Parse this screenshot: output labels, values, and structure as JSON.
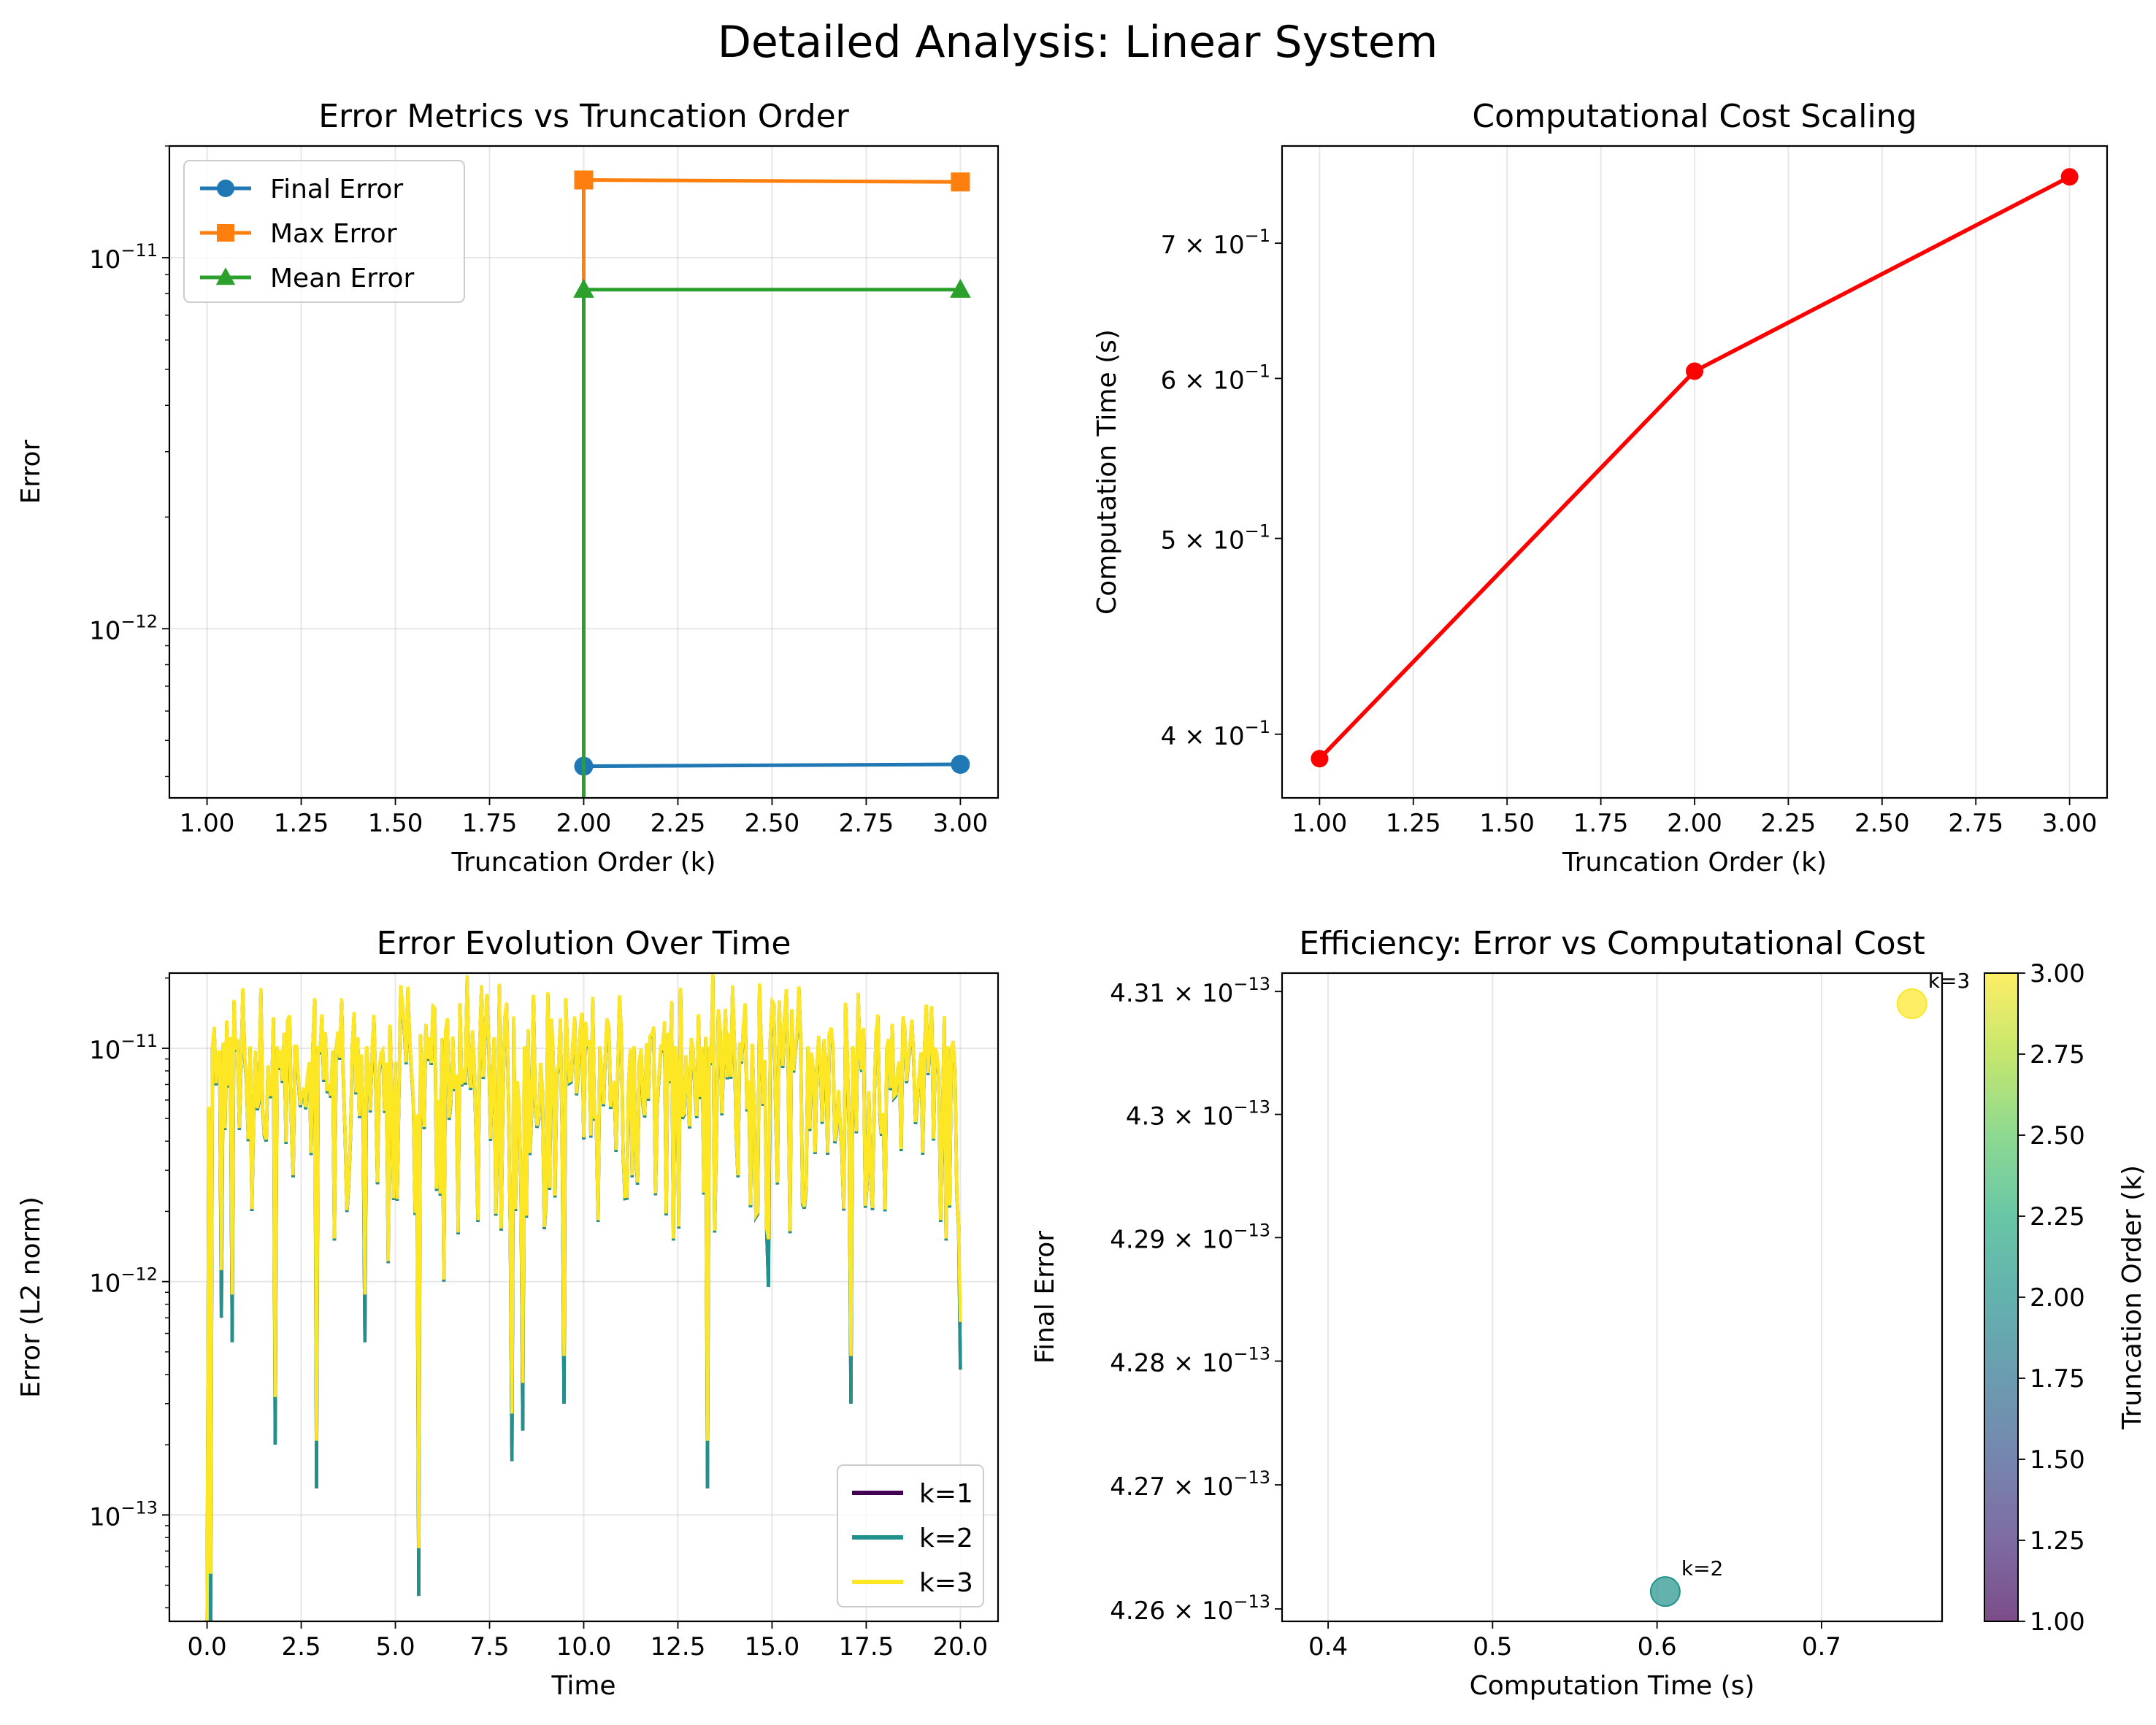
{
  "suptitle": "Detailed Analysis: Linear System",
  "chart_data": [
    {
      "type": "line",
      "title": "Error Metrics vs Truncation Order",
      "xlabel": "Truncation Order (k)",
      "ylabel": "Error",
      "yscale": "log",
      "xlim": [
        0.9,
        3.1
      ],
      "ylim": [
        3.5e-13,
        2e-11
      ],
      "grid": true,
      "legend": "top-left",
      "x_ticks": [
        1.0,
        1.25,
        1.5,
        1.75,
        2.0,
        2.25,
        2.5,
        2.75,
        3.0
      ],
      "x_tick_labels": [
        "1.00",
        "1.25",
        "1.50",
        "1.75",
        "2.00",
        "2.25",
        "2.50",
        "2.75",
        "3.00"
      ],
      "y_major_ticks": [
        1e-12,
        1e-11
      ],
      "y_tick_labels": [
        "10",
        "10"
      ],
      "y_tick_exponents": [
        "−12",
        "−11"
      ],
      "x": [
        1,
        2,
        3
      ],
      "series": [
        {
          "name": "Final Error",
          "values": [
            0.0,
            4.26e-13,
            4.31e-13
          ],
          "color": "#1f77b4",
          "marker": "circle"
        },
        {
          "name": "Max Error",
          "values": [
            0.0,
            1.62e-11,
            1.6e-11
          ],
          "color": "#ff7f0e",
          "marker": "square"
        },
        {
          "name": "Mean Error",
          "values": [
            0.0,
            8.2e-12,
            8.2e-12
          ],
          "color": "#2ca02c",
          "marker": "triangle"
        }
      ]
    },
    {
      "type": "line",
      "title": "Computational Cost Scaling",
      "xlabel": "Truncation Order (k)",
      "ylabel": "Computation Time (s)",
      "yscale": "log",
      "xlim": [
        0.9,
        3.1
      ],
      "ylim": [
        0.372,
        0.782
      ],
      "grid": "x-only",
      "x_ticks": [
        1.0,
        1.25,
        1.5,
        1.75,
        2.0,
        2.25,
        2.5,
        2.75,
        3.0
      ],
      "x_tick_labels": [
        "1.00",
        "1.25",
        "1.50",
        "1.75",
        "2.00",
        "2.25",
        "2.50",
        "2.75",
        "3.00"
      ],
      "y_ticks": [
        0.4,
        0.5,
        0.6,
        0.7
      ],
      "y_tick_labels": [
        "4 × 10",
        "5 × 10",
        "6 × 10",
        "7 × 10"
      ],
      "y_tick_exponents": [
        "−1",
        "−1",
        "−1",
        "−1"
      ],
      "x": [
        1,
        2,
        3
      ],
      "series": [
        {
          "values": [
            0.389,
            0.605,
            0.755
          ],
          "color": "#ff0000",
          "marker": "circle"
        }
      ]
    },
    {
      "type": "line",
      "title": "Error Evolution Over Time",
      "xlabel": "Time",
      "ylabel": "Error (L2 norm)",
      "yscale": "log",
      "xlim": [
        -1.0,
        21.0
      ],
      "ylim": [
        3.5e-14,
        2.1e-11
      ],
      "grid": true,
      "legend": "bottom-right",
      "x_ticks": [
        0.0,
        2.5,
        5.0,
        7.5,
        10.0,
        12.5,
        15.0,
        17.5,
        20.0
      ],
      "x_tick_labels": [
        "0.0",
        "2.5",
        "5.0",
        "7.5",
        "10.0",
        "12.5",
        "15.0",
        "17.5",
        "20.0"
      ],
      "y_major_ticks": [
        1e-13,
        1e-12,
        1e-11
      ],
      "y_tick_labels": [
        "10",
        "10",
        "10"
      ],
      "y_tick_exponents": [
        "−13",
        "−12",
        "−11"
      ],
      "t_range": [
        0,
        20
      ],
      "dips": [
        {
          "t": 0.1,
          "v": 3.5e-14
        },
        {
          "t": 0.4,
          "v": 7e-13
        },
        {
          "t": 0.65,
          "v": 5.5e-13
        },
        {
          "t": 1.1,
          "v": 4e-12
        },
        {
          "t": 1.8,
          "v": 2e-13
        },
        {
          "t": 2.3,
          "v": 2.8e-12
        },
        {
          "t": 2.9,
          "v": 1.3e-13
        },
        {
          "t": 3.4,
          "v": 1.5e-12
        },
        {
          "t": 4.2,
          "v": 5.5e-13
        },
        {
          "t": 4.8,
          "v": 1.2e-12
        },
        {
          "t": 5.6,
          "v": 4.5e-14
        },
        {
          "t": 6.3,
          "v": 1e-12
        },
        {
          "t": 7.2,
          "v": 1.8e-12
        },
        {
          "t": 8.1,
          "v": 1.7e-13
        },
        {
          "t": 8.4,
          "v": 2.3e-13
        },
        {
          "t": 9.0,
          "v": 2.2e-12
        },
        {
          "t": 9.5,
          "v": 3e-13
        },
        {
          "t": 10.4,
          "v": 1.8e-12
        },
        {
          "t": 11.3,
          "v": 2.8e-12
        },
        {
          "t": 12.4,
          "v": 1.5e-12
        },
        {
          "t": 13.3,
          "v": 1.3e-13
        },
        {
          "t": 14.1,
          "v": 2.8e-12
        },
        {
          "t": 14.9,
          "v": 9.5e-13
        },
        {
          "t": 15.9,
          "v": 2.5e-12
        },
        {
          "t": 16.5,
          "v": 3.5e-12
        },
        {
          "t": 17.1,
          "v": 3e-13
        },
        {
          "t": 18.0,
          "v": 2e-12
        },
        {
          "t": 19.0,
          "v": 3.5e-12
        },
        {
          "t": 19.6,
          "v": 1.5e-12
        },
        {
          "t": 20.0,
          "v": 4.2e-13
        }
      ],
      "series": [
        {
          "name": "k=1",
          "color": "#440154"
        },
        {
          "name": "k=2",
          "color": "#21918c"
        },
        {
          "name": "k=3",
          "color": "#fde725"
        }
      ]
    },
    {
      "type": "scatter",
      "title": "Efficiency: Error vs Computational Cost",
      "xlabel": "Computation Time (s)",
      "ylabel": "Final Error",
      "yscale": "log",
      "xlim": [
        0.372,
        0.7733
      ],
      "ylim": [
        4.259e-13,
        4.3115e-13
      ],
      "grid": "x-only",
      "x_ticks": [
        0.4,
        0.5,
        0.6,
        0.7
      ],
      "x_tick_labels": [
        "0.4",
        "0.5",
        "0.6",
        "0.7"
      ],
      "y_ticks": [
        4.26e-13,
        4.27e-13,
        4.28e-13,
        4.29e-13,
        4.3e-13,
        4.31e-13
      ],
      "y_tick_labels": [
        "4.26 × 10",
        "4.27 × 10",
        "4.28 × 10",
        "4.29 × 10",
        "4.3 × 10",
        "4.31 × 10"
      ],
      "y_tick_exponents": [
        "−13",
        "−13",
        "−13",
        "−13",
        "−13",
        "−13"
      ],
      "points": [
        {
          "x": 0.605,
          "y": 4.2614e-13,
          "k": 2,
          "label": "k=2",
          "color": "#21918c"
        },
        {
          "x": 0.755,
          "y": 4.309e-13,
          "k": 3,
          "label": "k=3",
          "color": "#fde725"
        }
      ],
      "colorbar": {
        "label": "Truncation Order (k)",
        "range": [
          1.0,
          3.0
        ],
        "ticks": [
          1.0,
          1.25,
          1.5,
          1.75,
          2.0,
          2.25,
          2.5,
          2.75,
          3.0
        ],
        "tick_labels": [
          "1.00",
          "1.25",
          "1.50",
          "1.75",
          "2.00",
          "2.25",
          "2.50",
          "2.75",
          "3.00"
        ],
        "colormap": "viridis"
      }
    }
  ]
}
